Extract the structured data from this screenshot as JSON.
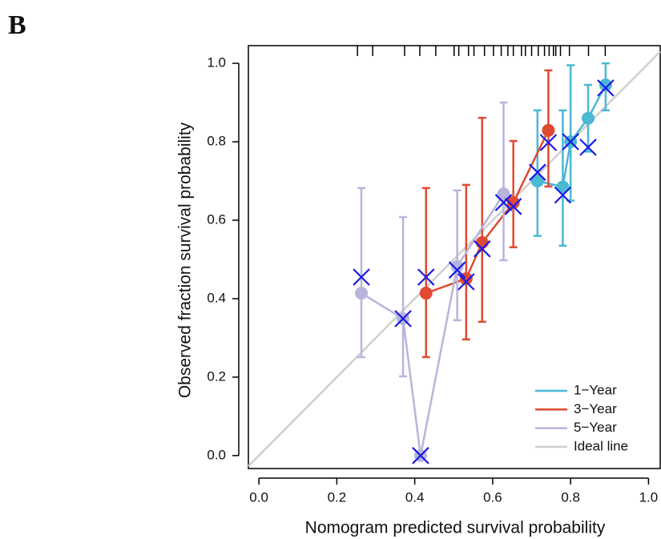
{
  "chart_data": {
    "type": "calibration",
    "panel_label": "B",
    "x_label": "Nomogram predicted survival probability",
    "y_label": "Observed fraction survival probability",
    "xlim": [
      -0.027,
      1.03
    ],
    "ylim": [
      -0.033,
      1.045
    ],
    "xticks": [
      {
        "value": 0,
        "label": "0.0"
      },
      0.2,
      0.4,
      0.6,
      0.8,
      {
        "value": 1,
        "label": "1.0"
      }
    ],
    "yticks": [
      {
        "value": 0,
        "label": "0.0"
      },
      0.2,
      0.4,
      0.6,
      0.8,
      {
        "value": 1,
        "label": "1.0"
      }
    ],
    "series": [
      {
        "name": "1−Year",
        "color": "#4bb8d4",
        "x": [
          0.715,
          0.78,
          0.8,
          0.845,
          0.89
        ],
        "values": [
          0.7,
          0.685,
          0.8,
          0.86,
          0.945
        ],
        "lower": [
          0.56,
          0.535,
          0.65,
          0.775,
          0.88
        ],
        "upper": [
          0.88,
          0.88,
          0.995,
          0.945,
          1.0
        ],
        "corrected": [
          0.722,
          0.664,
          0.8,
          0.786,
          0.937
        ]
      },
      {
        "name": "3−Year",
        "color": "#e04a32",
        "x": [
          0.429,
          0.532,
          0.573,
          0.653,
          0.743
        ],
        "values": [
          0.414,
          0.451,
          0.543,
          0.645,
          0.829
        ],
        "lower": [
          0.251,
          0.296,
          0.341,
          0.531,
          0.686
        ],
        "upper": [
          0.682,
          0.69,
          0.861,
          0.802,
          0.982
        ],
        "corrected": [
          0.455,
          0.443,
          0.527,
          0.635,
          0.798
        ]
      },
      {
        "name": "5−Year",
        "color": "#b7b5db",
        "x": [
          0.263,
          0.37,
          0.415,
          0.509,
          0.628
        ],
        "values": [
          0.414,
          0.349,
          0.0,
          0.482,
          0.667
        ],
        "lower": [
          0.251,
          0.202,
          null,
          0.345,
          0.498
        ],
        "upper": [
          0.682,
          0.608,
          null,
          0.676,
          0.9
        ],
        "corrected": [
          0.455,
          0.349,
          0.0,
          0.473,
          0.645
        ]
      }
    ],
    "corrected_color": "#1a1ae6",
    "ideal_line": {
      "name": "Ideal line",
      "color": "#cfcfcf"
    },
    "rug": [
      0.253,
      0.292,
      0.374,
      0.413,
      0.454,
      0.501,
      0.513,
      0.538,
      0.552,
      0.579,
      0.602,
      0.622,
      0.639,
      0.653,
      0.674,
      0.684,
      0.7,
      0.717,
      0.733,
      0.745,
      0.756,
      0.762,
      0.774,
      0.797,
      0.846,
      0.889
    ]
  }
}
